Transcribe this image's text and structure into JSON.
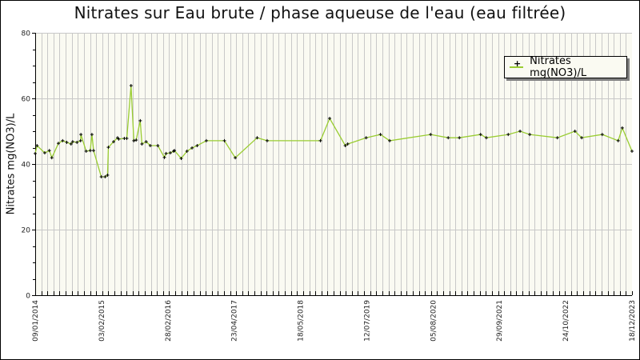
{
  "chart_data": {
    "type": "line",
    "title": "Nitrates sur Eau brute / phase aqueuse de l'eau (eau filtrée)",
    "xlabel": "",
    "ylabel": "Nitrates mg(NO3)/L",
    "ylim": [
      0,
      80
    ],
    "y_ticks": [
      0,
      20,
      40,
      60,
      80
    ],
    "x_tick_labels": [
      "09/01/2014",
      "03/02/2015",
      "28/02/2016",
      "23/04/2017",
      "18/05/2018",
      "12/07/2019",
      "05/08/2020",
      "29/09/2021",
      "24/10/2022",
      "18/12/2023"
    ],
    "x_range": [
      "09/01/2014",
      "18/12/2023"
    ],
    "grid": true,
    "legend_position": "top-right",
    "colors": {
      "line": "#9acd32",
      "marker": "#000000",
      "plot_bg": "#fafaf2",
      "grid": "#c8c8c8"
    },
    "series": [
      {
        "name": "Nitrates mg(NO3)/L",
        "points": [
          {
            "x": "09/01/2014",
            "y": 43.2
          },
          {
            "x": "20/01/2014",
            "y": 45.6
          },
          {
            "x": "08/03/2014",
            "y": 43.4
          },
          {
            "x": "05/04/2014",
            "y": 44.1
          },
          {
            "x": "20/04/2014",
            "y": 41.9
          },
          {
            "x": "30/05/2014",
            "y": 46.3
          },
          {
            "x": "25/06/2014",
            "y": 47.1
          },
          {
            "x": "20/07/2014",
            "y": 46.6
          },
          {
            "x": "15/08/2014",
            "y": 46.1
          },
          {
            "x": "25/08/2014",
            "y": 46.8
          },
          {
            "x": "20/09/2014",
            "y": 46.6
          },
          {
            "x": "12/10/2014",
            "y": 47.1
          },
          {
            "x": "14/10/2014",
            "y": 49.0
          },
          {
            "x": "15/11/2014",
            "y": 43.9
          },
          {
            "x": "10/12/2014",
            "y": 44.1
          },
          {
            "x": "20/12/2014",
            "y": 49.0
          },
          {
            "x": "30/12/2014",
            "y": 44.1
          },
          {
            "x": "15/02/2015",
            "y": 36.1
          },
          {
            "x": "10/03/2015",
            "y": 36.1
          },
          {
            "x": "25/03/2015",
            "y": 36.6
          },
          {
            "x": "30/03/2015",
            "y": 45.1
          },
          {
            "x": "01/05/2015",
            "y": 46.8
          },
          {
            "x": "25/05/2015",
            "y": 48.0
          },
          {
            "x": "01/06/2015",
            "y": 47.6
          },
          {
            "x": "05/07/2015",
            "y": 47.8
          },
          {
            "x": "20/07/2015",
            "y": 47.8
          },
          {
            "x": "15/08/2015",
            "y": 63.9
          },
          {
            "x": "01/09/2015",
            "y": 47.1
          },
          {
            "x": "15/09/2015",
            "y": 47.3
          },
          {
            "x": "10/10/2015",
            "y": 53.2
          },
          {
            "x": "20/10/2015",
            "y": 46.1
          },
          {
            "x": "15/11/2015",
            "y": 46.8
          },
          {
            "x": "10/12/2015",
            "y": 45.6
          },
          {
            "x": "25/01/2016",
            "y": 45.6
          },
          {
            "x": "05/03/2016",
            "y": 42.0
          },
          {
            "x": "15/03/2016",
            "y": 43.2
          },
          {
            "x": "10/04/2016",
            "y": 43.4
          },
          {
            "x": "30/04/2016",
            "y": 43.9
          },
          {
            "x": "05/05/2016",
            "y": 44.1
          },
          {
            "x": "15/06/2016",
            "y": 41.7
          },
          {
            "x": "20/07/2016",
            "y": 43.9
          },
          {
            "x": "20/08/2016",
            "y": 44.9
          },
          {
            "x": "20/09/2016",
            "y": 45.6
          },
          {
            "x": "15/11/2016",
            "y": 47.1
          },
          {
            "x": "05/03/2017",
            "y": 47.1
          },
          {
            "x": "10/05/2017",
            "y": 41.9
          },
          {
            "x": "20/09/2017",
            "y": 48.0
          },
          {
            "x": "20/11/2017",
            "y": 47.1
          },
          {
            "x": "10/10/2018",
            "y": 47.1
          },
          {
            "x": "05/12/2018",
            "y": 53.9
          },
          {
            "x": "10/03/2019",
            "y": 45.6
          },
          {
            "x": "25/03/2019",
            "y": 46.1
          },
          {
            "x": "15/07/2019",
            "y": 48.0
          },
          {
            "x": "10/10/2019",
            "y": 49.0
          },
          {
            "x": "05/12/2019",
            "y": 47.1
          },
          {
            "x": "10/08/2020",
            "y": 49.0
          },
          {
            "x": "25/11/2020",
            "y": 48.0
          },
          {
            "x": "01/02/2021",
            "y": 48.0
          },
          {
            "x": "10/06/2021",
            "y": 49.0
          },
          {
            "x": "15/07/2021",
            "y": 48.0
          },
          {
            "x": "25/11/2021",
            "y": 49.0
          },
          {
            "x": "05/02/2022",
            "y": 50.0
          },
          {
            "x": "05/04/2022",
            "y": 49.0
          },
          {
            "x": "20/09/2022",
            "y": 48.0
          },
          {
            "x": "05/01/2023",
            "y": 50.0
          },
          {
            "x": "15/02/2023",
            "y": 48.0
          },
          {
            "x": "20/06/2023",
            "y": 49.0
          },
          {
            "x": "25/09/2023",
            "y": 47.1
          },
          {
            "x": "20/10/2023",
            "y": 51.0
          },
          {
            "x": "18/12/2023",
            "y": 43.9
          }
        ]
      }
    ]
  },
  "chart": {
    "title": "Nitrates sur Eau brute / phase aqueuse de l'eau (eau filtrée)",
    "ylabel": "Nitrates mg(NO3)/L",
    "legend_label": "Nitrates mg(NO3)/L"
  }
}
